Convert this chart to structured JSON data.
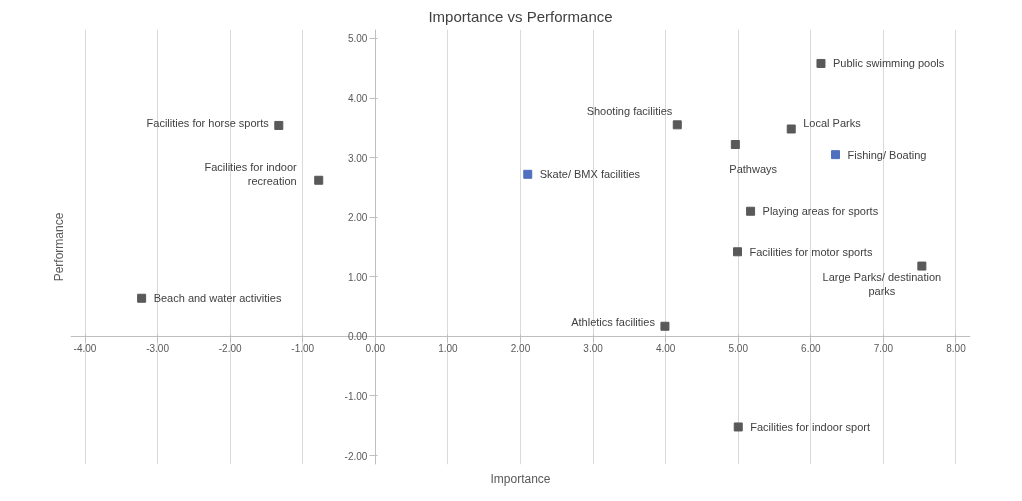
{
  "chart_data": {
    "type": "scatter",
    "title": "Importance vs Performance",
    "xlabel": "Importance",
    "ylabel": "Performance",
    "x": [
      6.14,
      5.73,
      4.16,
      4.96,
      6.34,
      2.1,
      5.17,
      4.99,
      7.53,
      3.99,
      5.0,
      -1.33,
      -0.78,
      -3.22
    ],
    "values": [
      4.58,
      3.48,
      3.55,
      3.22,
      3.05,
      2.72,
      2.1,
      1.42,
      1.18,
      0.17,
      -1.52,
      3.54,
      2.62,
      0.64
    ],
    "colors": [
      "#595959",
      "#595959",
      "#595959",
      "#595959",
      "#4f6fbf",
      "#4f6fbf",
      "#595959",
      "#595959",
      "#595959",
      "#595959",
      "#595959",
      "#595959",
      "#595959",
      "#595959"
    ],
    "annotations": [
      {
        "text": "Public swimming pools",
        "x": 6.14,
        "y": 4.58
      },
      {
        "text": "Local Parks",
        "x": 5.73,
        "y": 3.48
      },
      {
        "text": "Shooting facilities",
        "x": 4.16,
        "y": 3.55
      },
      {
        "text": "Pathways",
        "x": 4.96,
        "y": 3.22
      },
      {
        "text": "Fishing/ Boating",
        "x": 6.34,
        "y": 3.05
      },
      {
        "text": "Skate/ BMX facilities",
        "x": 2.1,
        "y": 2.72
      },
      {
        "text": "Playing areas for sports",
        "x": 5.17,
        "y": 2.1
      },
      {
        "text": "Facilities for motor sports",
        "x": 4.99,
        "y": 1.42
      },
      {
        "text": "Large Parks/ destination parks",
        "x": 7.53,
        "y": 1.18
      },
      {
        "text": "Athletics facilities",
        "x": 3.99,
        "y": 0.17
      },
      {
        "text": "Facilities for indoor sport",
        "x": 5.0,
        "y": -1.52
      },
      {
        "text": "Facilities for horse sports",
        "x": -1.33,
        "y": 3.54
      },
      {
        "text": "Facilities for indoor recreation",
        "x": -0.78,
        "y": 2.62
      },
      {
        "text": "Beach and water activities",
        "x": -3.22,
        "y": 0.64
      }
    ],
    "xlim": [
      -4.2,
      8.2
    ],
    "ylim": [
      -2.15,
      5.15
    ],
    "xticks": [
      {
        "value": -4,
        "label": "-4.00"
      },
      {
        "value": -3,
        "label": "-3.00"
      },
      {
        "value": -2,
        "label": "-2.00"
      },
      {
        "value": -1,
        "label": "-1.00"
      },
      {
        "value": 0,
        "label": "0.00"
      },
      {
        "value": 1,
        "label": "1.00"
      },
      {
        "value": 2,
        "label": "2.00"
      },
      {
        "value": 3,
        "label": "3.00"
      },
      {
        "value": 4,
        "label": "4.00"
      },
      {
        "value": 5,
        "label": "5.00"
      },
      {
        "value": 6,
        "label": "6.00"
      },
      {
        "value": 7,
        "label": "7.00"
      },
      {
        "value": 8,
        "label": "8.00"
      }
    ],
    "yticks": [
      {
        "value": -2,
        "label": "-2.00"
      },
      {
        "value": -1,
        "label": "-1.00"
      },
      {
        "value": 0,
        "label": "0.00"
      },
      {
        "value": 1,
        "label": "1.00"
      },
      {
        "value": 2,
        "label": "2.00"
      },
      {
        "value": 3,
        "label": "3.00"
      },
      {
        "value": 4,
        "label": "4.00"
      },
      {
        "value": 5,
        "label": "5.00"
      }
    ],
    "grid": "x",
    "marker": "square"
  }
}
